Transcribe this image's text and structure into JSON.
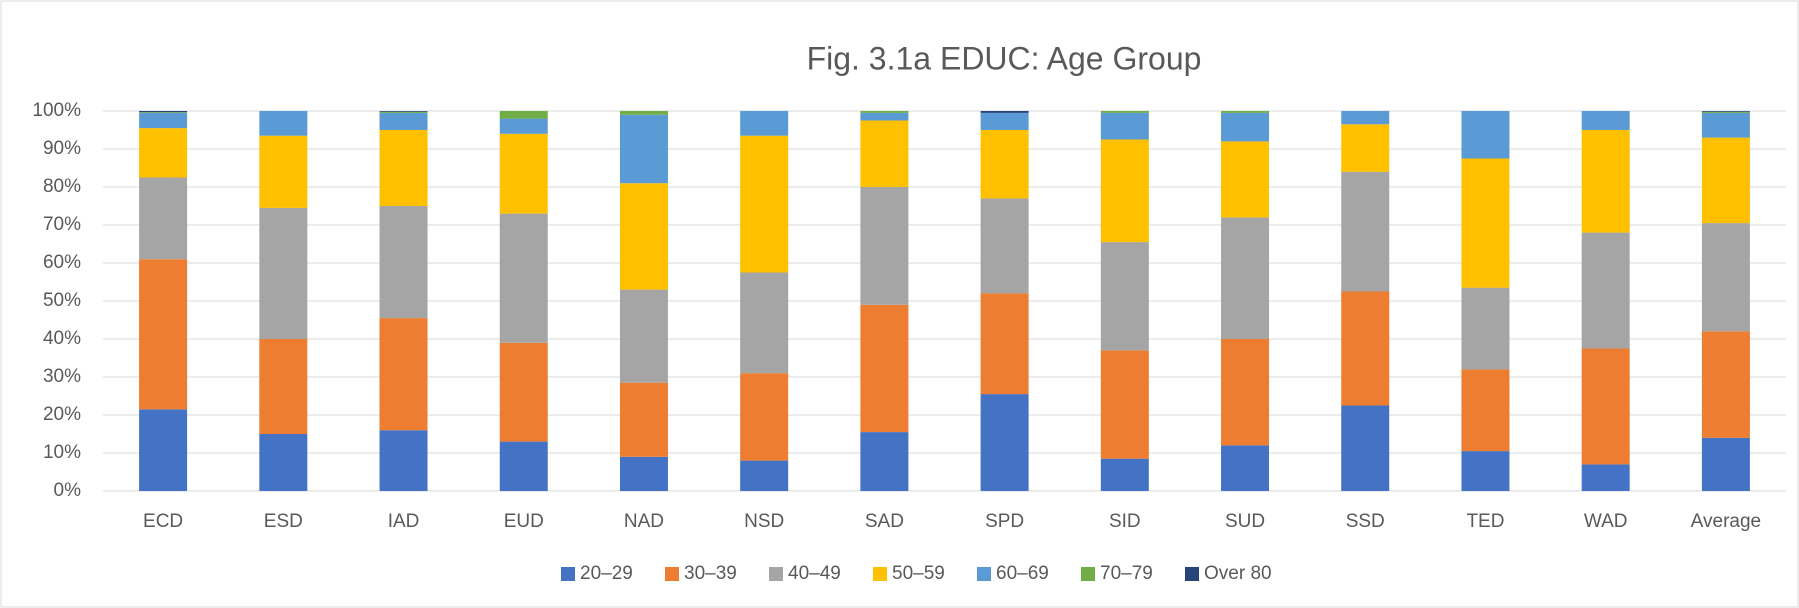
{
  "chart_data": {
    "type": "stacked_bar",
    "title": "Fig. 3.1a EDUC: Age Group",
    "categories": [
      "ECD",
      "ESD",
      "IAD",
      "EUD",
      "NAD",
      "NSD",
      "SAD",
      "SPD",
      "SID",
      "SUD",
      "SSD",
      "TED",
      "WAD",
      "Average"
    ],
    "series": [
      {
        "name": "20–29",
        "color": "#4472c4",
        "values": [
          21.5,
          15,
          16,
          13,
          9,
          8,
          15.5,
          25.5,
          8.5,
          12,
          22.5,
          10.5,
          7,
          14
        ]
      },
      {
        "name": "30–39",
        "color": "#ed7d31",
        "values": [
          39.5,
          25,
          29.5,
          26,
          19.5,
          23,
          33.5,
          26.5,
          28.5,
          28,
          30,
          21.5,
          30.5,
          28
        ]
      },
      {
        "name": "40–49",
        "color": "#a5a5a5",
        "values": [
          21.5,
          34.5,
          29.5,
          34,
          24.5,
          26.5,
          31,
          25,
          28.5,
          32,
          31.5,
          21.5,
          30.5,
          28.5
        ]
      },
      {
        "name": "50–59",
        "color": "#ffc000",
        "values": [
          13,
          19,
          20,
          21,
          28,
          36,
          17.5,
          18,
          27,
          20,
          12.5,
          34,
          27,
          22.5
        ]
      },
      {
        "name": "60–69",
        "color": "#5b9bd5",
        "values": [
          4,
          6.5,
          4.5,
          4,
          18,
          6.5,
          2,
          4.5,
          7,
          7.5,
          3.5,
          12.5,
          5,
          6.5
        ]
      },
      {
        "name": "70–79",
        "color": "#70ad47",
        "values": [
          0.2,
          0,
          0.3,
          2,
          1,
          0,
          0.5,
          0,
          0.5,
          0.5,
          0,
          0,
          0,
          0.3
        ]
      },
      {
        "name": "Over 80",
        "color": "#264478",
        "values": [
          0.3,
          0,
          0.2,
          0,
          0,
          0,
          0,
          0.5,
          0,
          0,
          0,
          0,
          0,
          0.2
        ]
      }
    ],
    "ylim": [
      0,
      100
    ],
    "yticks": [
      {
        "value": 0,
        "label": "0%"
      },
      {
        "value": 10,
        "label": "10%"
      },
      {
        "value": 20,
        "label": "20%"
      },
      {
        "value": 30,
        "label": "30%"
      },
      {
        "value": 40,
        "label": "40%"
      },
      {
        "value": 50,
        "label": "50%"
      },
      {
        "value": 60,
        "label": "60%"
      },
      {
        "value": 70,
        "label": "70%"
      },
      {
        "value": 80,
        "label": "80%"
      },
      {
        "value": 90,
        "label": "90%"
      },
      {
        "value": 100,
        "label": "100%"
      }
    ],
    "grid": true,
    "legend": "bottom"
  }
}
